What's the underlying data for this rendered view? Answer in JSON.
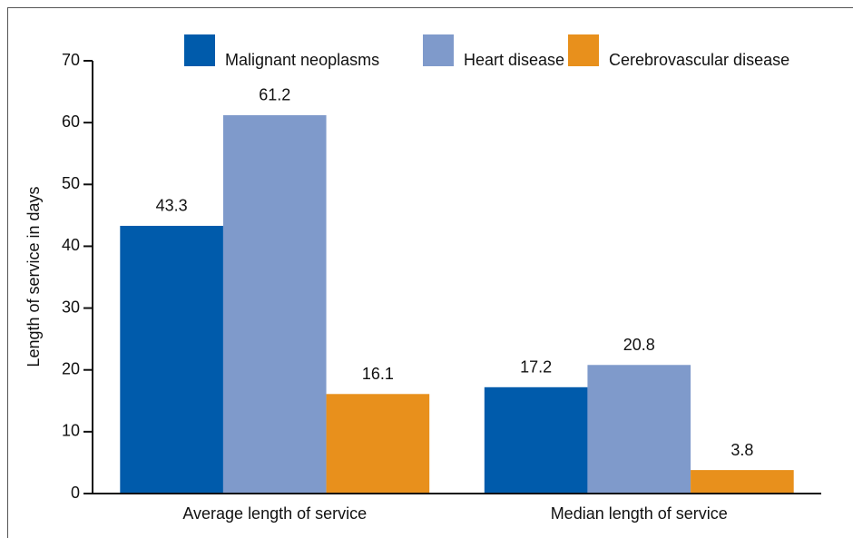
{
  "chart_data": {
    "type": "bar",
    "ylabel": "Length of service in days",
    "categories": [
      "Average length of service",
      "Median length of service"
    ],
    "series": [
      {
        "name": "Malignant neoplasms",
        "color": "#005bab",
        "values": [
          43.3,
          17.2
        ]
      },
      {
        "name": "Heart disease",
        "color": "#7f9acb",
        "values": [
          61.2,
          20.8
        ]
      },
      {
        "name": "Cerebrovascular disease",
        "color": "#e8901c",
        "values": [
          16.1,
          3.8
        ]
      }
    ],
    "ylim": [
      0,
      70
    ],
    "yticks": [
      0,
      10,
      20,
      30,
      40,
      50,
      60,
      70
    ],
    "data_labels": true,
    "legend": "top"
  }
}
